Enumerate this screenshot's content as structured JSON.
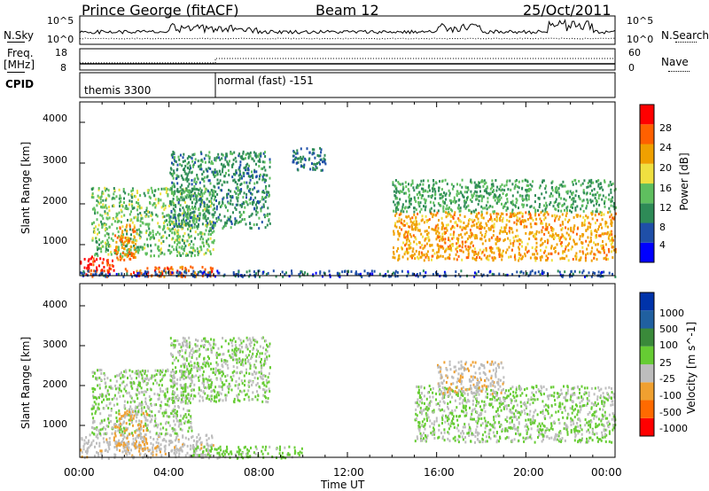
{
  "header": {
    "station": "Prince George (fitACF)",
    "beam": "Beam 12",
    "date": "25/Oct/2011"
  },
  "noise_panel": {
    "left_label": "N.Sky",
    "right_label": "N.Search",
    "ticks_top": "10^5",
    "ticks_bottom": "10^0"
  },
  "freq_panel": {
    "left_label_1": "Freq.",
    "left_label_2": "[MHz]",
    "right_label": "Nave",
    "left_ticks": [
      "18",
      "8"
    ],
    "right_ticks": [
      "60",
      "0"
    ]
  },
  "cpid_panel": {
    "label": "CPID",
    "segments": [
      {
        "start_hour": 0,
        "end_hour": 6,
        "name": "themis 3300"
      },
      {
        "start_hour": 6,
        "end_hour": 24,
        "name": "normal (fast) -151"
      }
    ]
  },
  "power_panel": {
    "ylabel": "Slant Range [km]",
    "yticks": [
      "4000",
      "3000",
      "2000",
      "1000"
    ],
    "colorbar_label": "Power [dB]",
    "colorbar_ticks": [
      "28",
      "24",
      "20",
      "16",
      "12",
      "8",
      "4"
    ]
  },
  "velocity_panel": {
    "ylabel": "Slant Range [km]",
    "yticks": [
      "4000",
      "3000",
      "2000",
      "1000"
    ],
    "colorbar_label": "Velocity [m s^-1]",
    "colorbar_ticks": [
      "1000",
      "500",
      "100",
      "25",
      "-25",
      "-100",
      "-500",
      "-1000"
    ]
  },
  "x_axis": {
    "label": "Time UT",
    "ticks": [
      "00:00",
      "04:00",
      "08:00",
      "12:00",
      "16:00",
      "20:00",
      "00:00"
    ]
  },
  "colors": {
    "power_scale": [
      "#0000ff",
      "#1f4fa8",
      "#2e8b57",
      "#5fbf5f",
      "#f0e040",
      "#f0a000",
      "#ff6000",
      "#ff0000"
    ],
    "velocity_scale": [
      "#0033aa",
      "#2060a0",
      "#3a8a3a",
      "#66cc33",
      "#bdbdbd",
      "#f0a030",
      "#ff6a00",
      "#ff0000"
    ]
  },
  "chart_data": [
    {
      "type": "heatmap",
      "title": "Power",
      "xlabel": "Time UT",
      "ylabel": "Slant Range [km]",
      "xlim": [
        0,
        24
      ],
      "ylim": [
        200,
        4500
      ],
      "colorbar": {
        "label": "Power [dB]",
        "range": [
          0,
          32
        ]
      },
      "regions": [
        {
          "t": [
            0,
            1.5
          ],
          "range_km": [
            200,
            700
          ],
          "power_db": 28
        },
        {
          "t": [
            0.5,
            6
          ],
          "range_km": [
            700,
            2400
          ],
          "power_db": 14
        },
        {
          "t": [
            1.5,
            2.5
          ],
          "range_km": [
            600,
            1500
          ],
          "power_db": 24
        },
        {
          "t": [
            2,
            6
          ],
          "range_km": [
            200,
            450
          ],
          "power_db": 26
        },
        {
          "t": [
            4,
            8.5
          ],
          "range_km": [
            1400,
            3300
          ],
          "power_db": 10
        },
        {
          "t": [
            9.5,
            11
          ],
          "range_km": [
            2800,
            3400
          ],
          "power_db": 8
        },
        {
          "t": [
            14,
            24
          ],
          "range_km": [
            600,
            1800
          ],
          "power_db": 22
        },
        {
          "t": [
            14,
            24
          ],
          "range_km": [
            1800,
            2600
          ],
          "power_db": 12
        },
        {
          "t": [
            0,
            24
          ],
          "range_km": [
            200,
            350
          ],
          "power_db": 6
        }
      ]
    },
    {
      "type": "heatmap",
      "title": "Velocity",
      "xlabel": "Time UT",
      "ylabel": "Slant Range [km]",
      "xlim": [
        0,
        24
      ],
      "ylim": [
        200,
        4500
      ],
      "colorbar": {
        "label": "Velocity [m s^-1]",
        "range": [
          -1000,
          1000
        ]
      },
      "regions": [
        {
          "t": [
            0,
            6
          ],
          "range_km": [
            200,
            800
          ],
          "velocity": -150
        },
        {
          "t": [
            0.5,
            5
          ],
          "range_km": [
            800,
            2400
          ],
          "velocity": 0
        },
        {
          "t": [
            1.5,
            3
          ],
          "range_km": [
            400,
            1400
          ],
          "velocity": -300
        },
        {
          "t": [
            5,
            10
          ],
          "range_km": [
            200,
            500
          ],
          "velocity": 100
        },
        {
          "t": [
            4,
            8.5
          ],
          "range_km": [
            1600,
            3200
          ],
          "velocity": 0
        },
        {
          "t": [
            15,
            24
          ],
          "range_km": [
            600,
            2000
          ],
          "velocity": 0
        },
        {
          "t": [
            16,
            19
          ],
          "range_km": [
            1800,
            2600
          ],
          "velocity": -200
        }
      ]
    }
  ]
}
